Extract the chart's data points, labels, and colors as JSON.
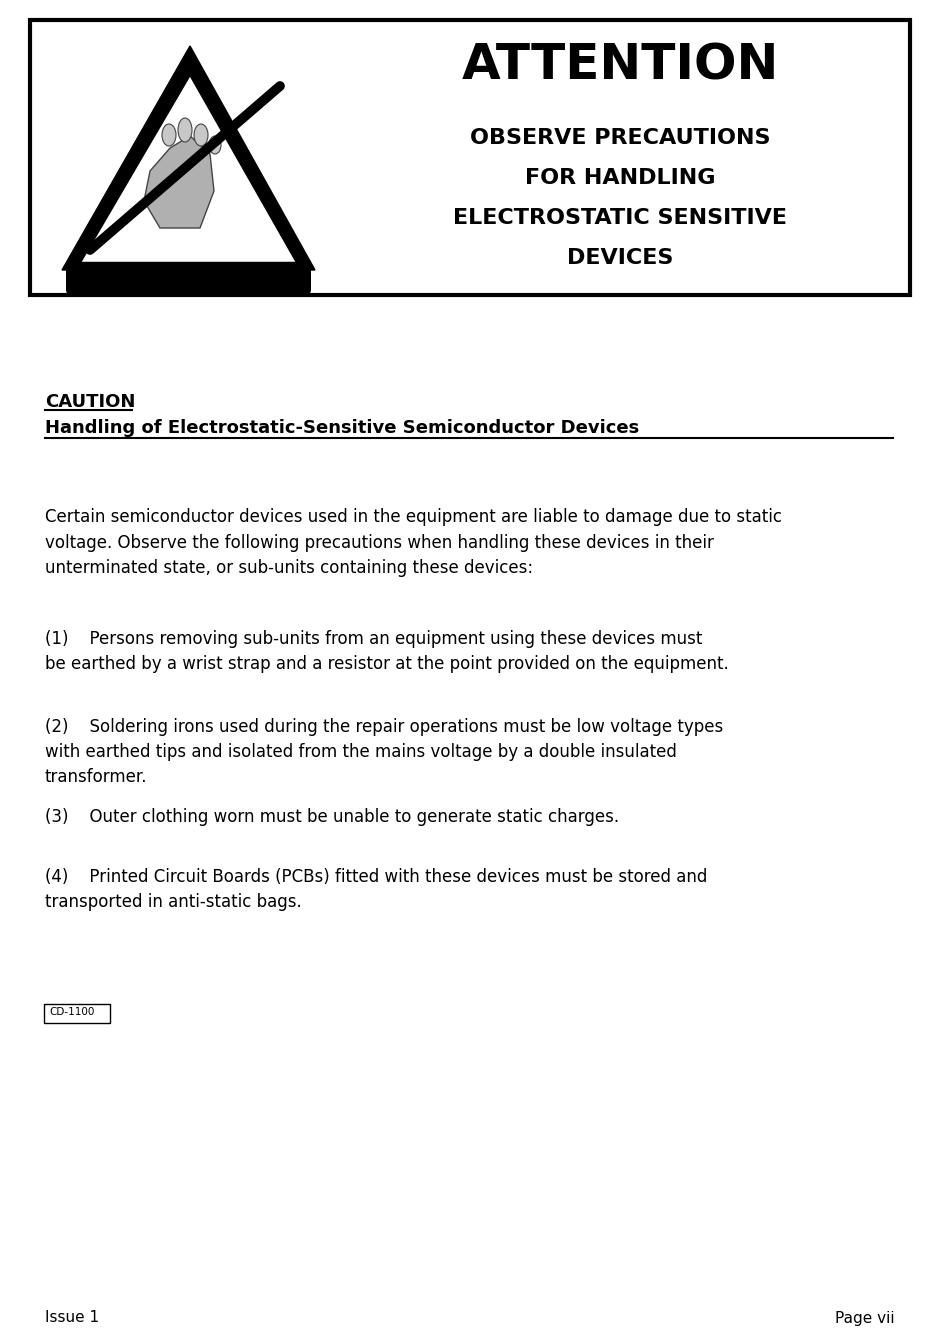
{
  "bg_color": "#ffffff",
  "border_color": "#000000",
  "attention_title": "ATTENTION",
  "attention_sub1": "OBSERVE PRECAUTIONS",
  "attention_sub2": "FOR HANDLING",
  "attention_sub3": "ELECTROSTATIC SENSITIVE",
  "attention_sub4": "DEVICES",
  "caution_label": "CAUTION",
  "caution_heading": "Handling of Electrostatic-Sensitive Semiconductor Devices",
  "body_text": "Certain semiconductor devices used in the equipment are liable to damage due to static\nvoltage. Observe the following precautions when handling these devices in their\nunterminated state, or sub-units containing these devices:",
  "item1": "(1)    Persons removing sub-units from an equipment using these devices must\nbe earthed by a wrist strap and a resistor at the point provided on the equipment.",
  "item2": "(2)    Soldering irons used during the repair operations must be low voltage types\nwith earthed tips and isolated from the mains voltage by a double insulated\ntransformer.",
  "item3": "(3)    Outer clothing worn must be unable to generate static charges.",
  "item4": "(4)    Printed Circuit Boards (PCBs) fitted with these devices must be stored and\ntransported in anti-static bags.",
  "cd_label": "CD-1100",
  "footer_left": "Issue 1",
  "footer_right": "Page vii"
}
